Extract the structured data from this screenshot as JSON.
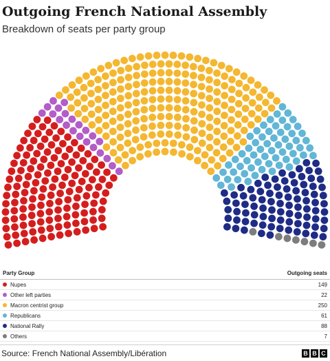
{
  "title": "Outgoing French National Assembly",
  "subtitle": "Breakdown of seats per party group",
  "chart_data": {
    "type": "hemicycle",
    "title": "Outgoing French National Assembly",
    "subtitle": "Breakdown of seats per party group",
    "total_seats": 577,
    "series": [
      {
        "name": "Nupes",
        "value": 149,
        "color": "#d41e1e"
      },
      {
        "name": "Other left parties",
        "value": 22,
        "color": "#b25dc8"
      },
      {
        "name": "Macron centrist group",
        "value": 250,
        "color": "#f4b731"
      },
      {
        "name": "Republicans",
        "value": 61,
        "color": "#62b6d6"
      },
      {
        "name": "National Rally",
        "value": 88,
        "color": "#1e2c86"
      },
      {
        "name": "Others",
        "value": 7,
        "color": "#7d7d7d"
      }
    ]
  },
  "legend": {
    "header_left": "Party Group",
    "header_right": "Outgoing seats"
  },
  "footer": {
    "source": "Source: French National Assembly/Libération",
    "logo_letters": [
      "B",
      "B",
      "C"
    ]
  }
}
